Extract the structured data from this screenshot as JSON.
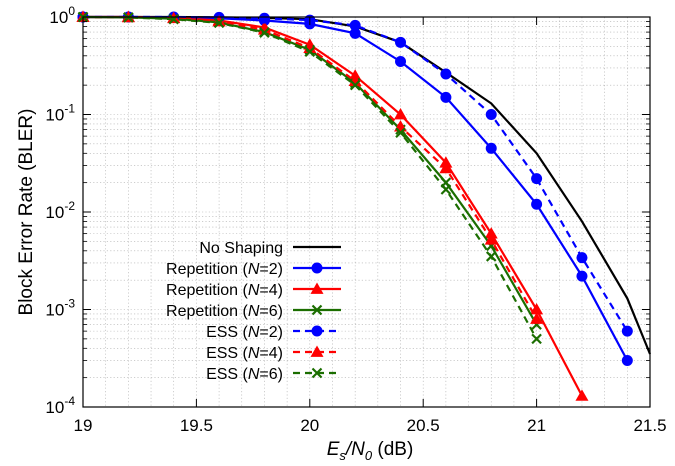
{
  "chart_data": {
    "type": "line",
    "xlabel": {
      "prefix": "E",
      "prefix_sub": "s",
      "slash": "/",
      "mid": "N",
      "mid_sub": "0",
      "unit": " (dB)"
    },
    "ylabel": "Block Error Rate (BLER)",
    "xlim": [
      19,
      21.5
    ],
    "ylim": [
      0.0001,
      1
    ],
    "yscale": "log",
    "grid": true,
    "legend_position": "bottom-left",
    "x_ticks": [
      "19",
      "19.5",
      "20",
      "20.5",
      "21",
      "21.5"
    ],
    "y_ticks": [
      {
        "base": "10",
        "exp": "0"
      },
      {
        "base": "10",
        "exp": "-1"
      },
      {
        "base": "10",
        "exp": "-2"
      },
      {
        "base": "10",
        "exp": "-3"
      },
      {
        "base": "10",
        "exp": "-4"
      }
    ],
    "series": [
      {
        "name": "No Shaping",
        "legend_pre": "No Shaping",
        "legend_var": "",
        "legend_post": "",
        "color": "#000000",
        "dash": "solid",
        "marker": "none",
        "x": [
          19,
          19.2,
          19.4,
          19.6,
          19.8,
          20,
          20.2,
          20.4,
          20.6,
          20.8,
          21,
          21.2,
          21.4,
          21.5
        ],
        "y": [
          1,
          1,
          1,
          0.99,
          0.98,
          0.95,
          0.8,
          0.55,
          0.27,
          0.13,
          0.04,
          0.008,
          0.0013,
          0.00035
        ]
      },
      {
        "name": "Repetition (N=2)",
        "legend_pre": "Repetition (",
        "legend_var": "N",
        "legend_post": "=2)",
        "color": "#0000ff",
        "dash": "solid",
        "marker": "circle",
        "x": [
          19,
          19.2,
          19.4,
          19.6,
          19.8,
          20,
          20.2,
          20.4,
          20.6,
          20.8,
          21,
          21.2,
          21.4
        ],
        "y": [
          1,
          1,
          0.99,
          0.97,
          0.92,
          0.85,
          0.68,
          0.35,
          0.15,
          0.045,
          0.012,
          0.0022,
          0.0003
        ]
      },
      {
        "name": "Repetition (N=4)",
        "legend_pre": "Repetition (",
        "legend_var": "N",
        "legend_post": "=4)",
        "color": "#ff0000",
        "dash": "solid",
        "marker": "triangle",
        "x": [
          19,
          19.2,
          19.4,
          19.6,
          19.8,
          20,
          20.2,
          20.4,
          20.6,
          20.8,
          21,
          21.2
        ],
        "y": [
          1,
          1,
          0.98,
          0.92,
          0.78,
          0.52,
          0.25,
          0.1,
          0.032,
          0.006,
          0.001,
          0.00013
        ]
      },
      {
        "name": "Repetition (N=6)",
        "legend_pre": "Repetition (",
        "legend_var": "N",
        "legend_post": "=6)",
        "color": "#1b6e00",
        "dash": "solid",
        "marker": "cross",
        "x": [
          19,
          19.2,
          19.4,
          19.6,
          19.8,
          20,
          20.2,
          20.4,
          20.6,
          20.8,
          21
        ],
        "y": [
          1,
          0.99,
          0.96,
          0.88,
          0.7,
          0.46,
          0.21,
          0.07,
          0.02,
          0.0045,
          0.0007
        ]
      },
      {
        "name": "ESS (N=2)",
        "legend_pre": "ESS (",
        "legend_var": "N",
        "legend_post": "=2)",
        "color": "#0000ff",
        "dash": "dashed",
        "marker": "circle",
        "x": [
          19,
          19.2,
          19.4,
          19.6,
          19.8,
          20,
          20.2,
          20.4,
          20.6,
          20.8,
          21,
          21.2,
          21.4
        ],
        "y": [
          1,
          1,
          1,
          0.99,
          0.97,
          0.93,
          0.82,
          0.55,
          0.26,
          0.1,
          0.022,
          0.0034,
          0.0006
        ]
      },
      {
        "name": "ESS (N=4)",
        "legend_pre": "ESS (",
        "legend_var": "N",
        "legend_post": "=4)",
        "color": "#ff0000",
        "dash": "dashed",
        "marker": "triangle",
        "x": [
          19,
          19.2,
          19.4,
          19.6,
          19.8,
          20,
          20.2,
          20.4,
          20.6,
          20.8,
          21
        ],
        "y": [
          1,
          0.99,
          0.97,
          0.9,
          0.74,
          0.48,
          0.22,
          0.075,
          0.028,
          0.0052,
          0.0008
        ]
      },
      {
        "name": "ESS (N=6)",
        "legend_pre": "ESS (",
        "legend_var": "N",
        "legend_post": "=6)",
        "color": "#1b6e00",
        "dash": "dashed",
        "marker": "cross",
        "x": [
          19,
          19.2,
          19.4,
          19.6,
          19.8,
          20,
          20.2,
          20.4,
          20.6,
          20.8,
          21
        ],
        "y": [
          1,
          0.99,
          0.95,
          0.87,
          0.69,
          0.44,
          0.2,
          0.065,
          0.017,
          0.0035,
          0.0005
        ]
      }
    ]
  }
}
